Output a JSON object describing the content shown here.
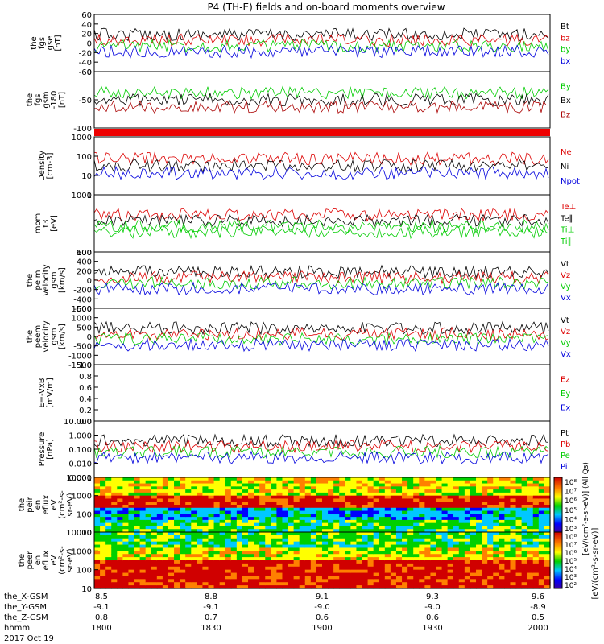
{
  "title": "P4 (TH-E) fields and on-board moments overview",
  "footer": {
    "rows": [
      {
        "label": "the_X-GSM",
        "values": [
          "8.5",
          "8.8",
          "9.1",
          "9.3",
          "9.6"
        ]
      },
      {
        "label": "the_Y-GSM",
        "values": [
          "-9.1",
          "-9.1",
          "-9.0",
          "-9.0",
          "-8.9"
        ]
      },
      {
        "label": "the_Z-GSM",
        "values": [
          "0.8",
          "0.7",
          "0.6",
          "0.6",
          "0.5"
        ]
      },
      {
        "label": "hhmm",
        "values": [
          "1800",
          "1830",
          "1900",
          "1930",
          "2000"
        ]
      }
    ],
    "date": "2017 Oct 19"
  },
  "colorbar": {
    "unit_label": "[eV/(cm²-s-sr-eV)]",
    "overlay_label": "[eV/(cm²-s-sr-eV)] (All Qs)",
    "top_ticks": [
      "10⁸",
      "10⁷",
      "10⁶",
      "10⁵",
      "10⁴",
      "10³"
    ],
    "bottom_ticks": [
      "10⁸",
      "10⁷",
      "10⁶",
      "10⁵",
      "10⁴",
      "10³",
      "10²"
    ]
  },
  "chart_data": [
    {
      "type": "line",
      "ylabel": [
        "the",
        "fgs",
        "gse",
        "[nT]"
      ],
      "ylim": [
        -60,
        60
      ],
      "yticks": [
        "60",
        "40",
        "20",
        "0",
        "-20",
        "-40",
        "-60"
      ],
      "series": [
        {
          "name": "Bt",
          "color": "#000000"
        },
        {
          "name": "bz",
          "color": "#dd0000"
        },
        {
          "name": "by",
          "color": "#00cc00"
        },
        {
          "name": "bx",
          "color": "#0000dd"
        }
      ]
    },
    {
      "type": "line",
      "ylabel": [
        "the",
        "fgs",
        "gsm",
        "-180",
        "[nT]"
      ],
      "ylim": [
        -120,
        30
      ],
      "yticks": [
        "0",
        "-50",
        "-100"
      ],
      "series": [
        {
          "name": "By",
          "color": "#00cc00"
        },
        {
          "name": "Bx",
          "color": "#000000"
        },
        {
          "name": "Bz",
          "color": "#aa0000"
        }
      ]
    },
    {
      "type": "line",
      "ylabel": [
        "Density",
        "[cm-3]"
      ],
      "ylim": [
        1,
        1000
      ],
      "scale": "log",
      "yticks": [
        "1000",
        "100",
        "10",
        "1"
      ],
      "series": [
        {
          "name": "Ne",
          "color": "#dd0000"
        },
        {
          "name": "Ni",
          "color": "#000000"
        },
        {
          "name": "Npot",
          "color": "#0000dd"
        }
      ]
    },
    {
      "type": "line",
      "ylabel": [
        "mom",
        "t3",
        "[eV]"
      ],
      "ylim": [
        30,
        5000
      ],
      "scale": "log",
      "yticks": [
        "1000",
        "100"
      ],
      "series": [
        {
          "name": "Te⊥",
          "color": "#dd0000"
        },
        {
          "name": "Te∥",
          "color": "#000000"
        },
        {
          "name": "Ti⊥",
          "color": "#00cc00"
        },
        {
          "name": "Ti∥",
          "color": "#00cc00"
        }
      ]
    },
    {
      "type": "line",
      "ylabel": [
        "the",
        "peim",
        "velocity",
        "gsm",
        "[km/s]"
      ],
      "ylim": [
        -600,
        600
      ],
      "yticks": [
        "600",
        "400",
        "200",
        "0",
        "-200",
        "-400",
        "-600"
      ],
      "series": [
        {
          "name": "Vt",
          "color": "#000000"
        },
        {
          "name": "Vz",
          "color": "#dd0000"
        },
        {
          "name": "Vy",
          "color": "#00cc00"
        },
        {
          "name": "Vx",
          "color": "#0000dd"
        }
      ]
    },
    {
      "type": "line",
      "ylabel": [
        "the",
        "peem",
        "velocity",
        "gsm",
        "[km/s]"
      ],
      "ylim": [
        -1500,
        1500
      ],
      "yticks": [
        "1500",
        "1000",
        "500",
        "0",
        "-500",
        "-1000",
        "-1500"
      ],
      "series": [
        {
          "name": "Vt",
          "color": "#000000"
        },
        {
          "name": "Vz",
          "color": "#dd0000"
        },
        {
          "name": "Vy",
          "color": "#00cc00"
        },
        {
          "name": "Vx",
          "color": "#0000dd"
        }
      ]
    },
    {
      "type": "line",
      "ylabel": [
        "E=-VxB",
        "[mV/m]"
      ],
      "ylim": [
        0,
        1
      ],
      "yticks": [
        "1.0",
        "0.8",
        "0.6",
        "0.4",
        "0.2",
        "0.0"
      ],
      "series": [
        {
          "name": "Ez",
          "color": "#dd0000"
        },
        {
          "name": "Ey",
          "color": "#00cc00"
        },
        {
          "name": "Ex",
          "color": "#0000dd"
        }
      ]
    },
    {
      "type": "line",
      "ylabel": [
        "Pressure",
        "[nPa]"
      ],
      "ylim": [
        0.001,
        10
      ],
      "scale": "log",
      "yticks": [
        "10.000",
        "1.000",
        "0.100",
        "0.010",
        "0.001"
      ],
      "series": [
        {
          "name": "Pt",
          "color": "#000000"
        },
        {
          "name": "Pb",
          "color": "#dd0000"
        },
        {
          "name": "Pe",
          "color": "#00cc00"
        },
        {
          "name": "Pi",
          "color": "#0000dd"
        }
      ]
    },
    {
      "type": "heatmap",
      "ylabel": [
        "the",
        "peir",
        "en",
        "eflux",
        "eV",
        "(cm²-s-",
        "sr-eV)"
      ],
      "ylim": [
        5,
        30000
      ],
      "scale": "log",
      "yticks": [
        "10000",
        "1000",
        "100",
        "10"
      ]
    },
    {
      "type": "heatmap",
      "ylabel": [
        "the",
        "peer",
        "en",
        "eflux",
        "eV",
        "(cm²-s-",
        "sr-eV)"
      ],
      "ylim": [
        5,
        30000
      ],
      "scale": "log",
      "yticks": [
        "10000",
        "1000",
        "100",
        "10"
      ]
    }
  ]
}
